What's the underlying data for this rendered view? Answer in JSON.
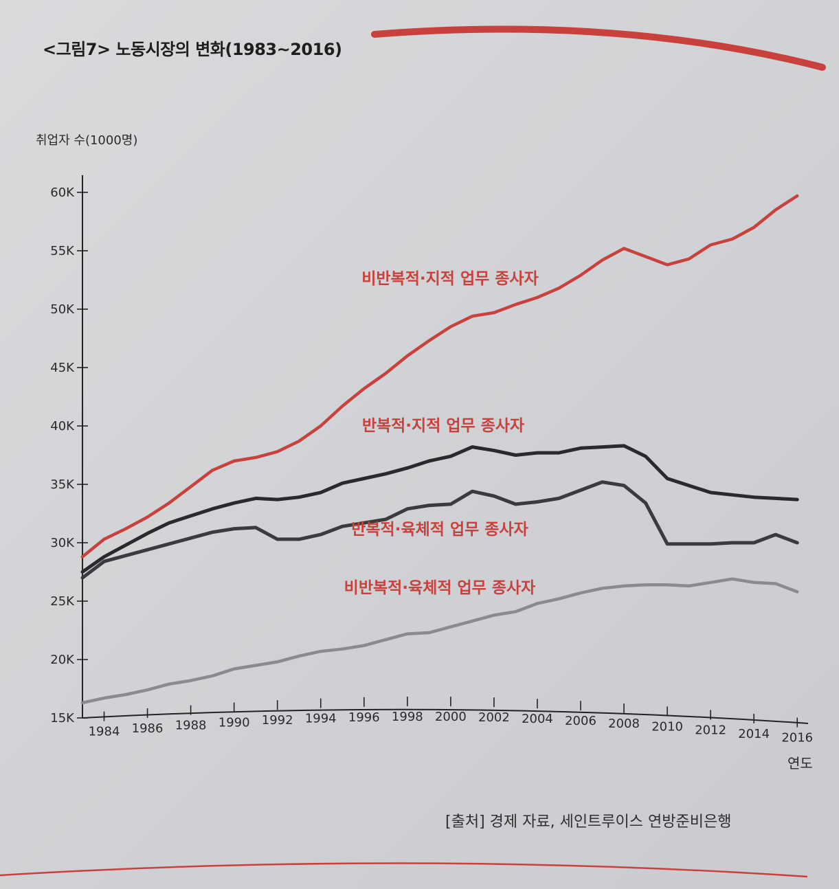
{
  "figure": {
    "title": "<그림7> 노동시장의 변화(1983~2016)",
    "source": "[출처] 경제 자료, 세인트루이스 연방준비은행"
  },
  "chart_data": {
    "type": "line",
    "title": "<그림7> 노동시장의 변화(1983~2016)",
    "ylabel": "취업자 수(1000명)",
    "xlabel": "연도",
    "ylim": [
      15000,
      60000
    ],
    "xlim": [
      1983,
      2016.5
    ],
    "yticks": [
      15000,
      20000,
      25000,
      30000,
      35000,
      40000,
      45000,
      50000,
      55000,
      60000
    ],
    "ytick_labels": [
      "15K",
      "20K",
      "25K",
      "30K",
      "35K",
      "40K",
      "45K",
      "50K",
      "55K",
      "60K"
    ],
    "xticks": [
      1984,
      1986,
      1988,
      1990,
      1992,
      1994,
      1996,
      1998,
      2000,
      2002,
      2004,
      2006,
      2008,
      2010,
      2012,
      2014,
      2016
    ],
    "xtick_labels": [
      "1984",
      "1986",
      "1988",
      "1990",
      "1992",
      "1994",
      "1996",
      "1998",
      "2000",
      "2002",
      "2004",
      "2006",
      "2008",
      "2010",
      "2012",
      "2014",
      "2016"
    ],
    "grid": false,
    "series": [
      {
        "name": "비반복적·지적 업무 종사자",
        "color": "#c8413d",
        "x": [
          1983,
          1984,
          1985,
          1986,
          1987,
          1988,
          1989,
          1990,
          1991,
          1992,
          1993,
          1994,
          1995,
          1996,
          1997,
          1998,
          1999,
          2000,
          2001,
          2002,
          2003,
          2004,
          2005,
          2006,
          2007,
          2008,
          2009,
          2010,
          2011,
          2012,
          2013,
          2014,
          2015,
          2016
        ],
        "values": [
          28800,
          30300,
          31200,
          32200,
          33400,
          34800,
          36200,
          37000,
          37300,
          37800,
          38700,
          40000,
          41700,
          43200,
          44500,
          46000,
          47300,
          48500,
          49400,
          49700,
          50400,
          51000,
          51800,
          52900,
          54200,
          55200,
          54500,
          53800,
          54300,
          55500,
          56000,
          57000,
          58500,
          59700
        ]
      },
      {
        "name": "반복적·지적 업무 종사자",
        "color": "#2a2a2c",
        "x": [
          1983,
          1984,
          1985,
          1986,
          1987,
          1988,
          1989,
          1990,
          1991,
          1992,
          1993,
          1994,
          1995,
          1996,
          1997,
          1998,
          1999,
          2000,
          2001,
          2002,
          2003,
          2004,
          2005,
          2006,
          2007,
          2008,
          2009,
          2010,
          2011,
          2012,
          2013,
          2014,
          2015,
          2016
        ],
        "values": [
          27500,
          28800,
          29800,
          30800,
          31700,
          32300,
          32900,
          33400,
          33800,
          33700,
          33900,
          34300,
          35100,
          35500,
          35900,
          36400,
          37000,
          37400,
          38200,
          37900,
          37500,
          37700,
          37700,
          38100,
          38200,
          38300,
          37400,
          35500,
          34900,
          34300,
          34100,
          33900,
          33800,
          33700
        ]
      },
      {
        "name": "반복적·육체적 업무 종사자",
        "color": "#3b3b3e",
        "x": [
          1983,
          1984,
          1985,
          1986,
          1987,
          1988,
          1989,
          1990,
          1991,
          1992,
          1993,
          1994,
          1995,
          1996,
          1997,
          1998,
          1999,
          2000,
          2001,
          2002,
          2003,
          2004,
          2005,
          2006,
          2007,
          2008,
          2009,
          2010,
          2011,
          2012,
          2013,
          2014,
          2015,
          2016
        ],
        "values": [
          27000,
          28400,
          28900,
          29400,
          29900,
          30400,
          30900,
          31200,
          31300,
          30300,
          30300,
          30700,
          31400,
          31700,
          32000,
          32900,
          33200,
          33300,
          34400,
          34000,
          33300,
          33500,
          33800,
          34500,
          35200,
          34900,
          33400,
          29900,
          29900,
          29900,
          30000,
          30000,
          30700,
          30000
        ]
      },
      {
        "name": "비반복적·육체적 업무 종사자",
        "color": "#8a8b8f",
        "x": [
          1983,
          1984,
          1985,
          1986,
          1987,
          1988,
          1989,
          1990,
          1991,
          1992,
          1993,
          1994,
          1995,
          1996,
          1997,
          1998,
          1999,
          2000,
          2001,
          2002,
          2003,
          2004,
          2005,
          2006,
          2007,
          2008,
          2009,
          2010,
          2011,
          2012,
          2013,
          2014,
          2015,
          2016
        ],
        "values": [
          16300,
          16700,
          17000,
          17400,
          17900,
          18200,
          18600,
          19200,
          19500,
          19800,
          20300,
          20700,
          20900,
          21200,
          21700,
          22200,
          22300,
          22800,
          23300,
          23800,
          24100,
          24800,
          25200,
          25700,
          26100,
          26300,
          26400,
          26400,
          26300,
          26600,
          26900,
          26600,
          26500,
          25800
        ]
      }
    ]
  }
}
